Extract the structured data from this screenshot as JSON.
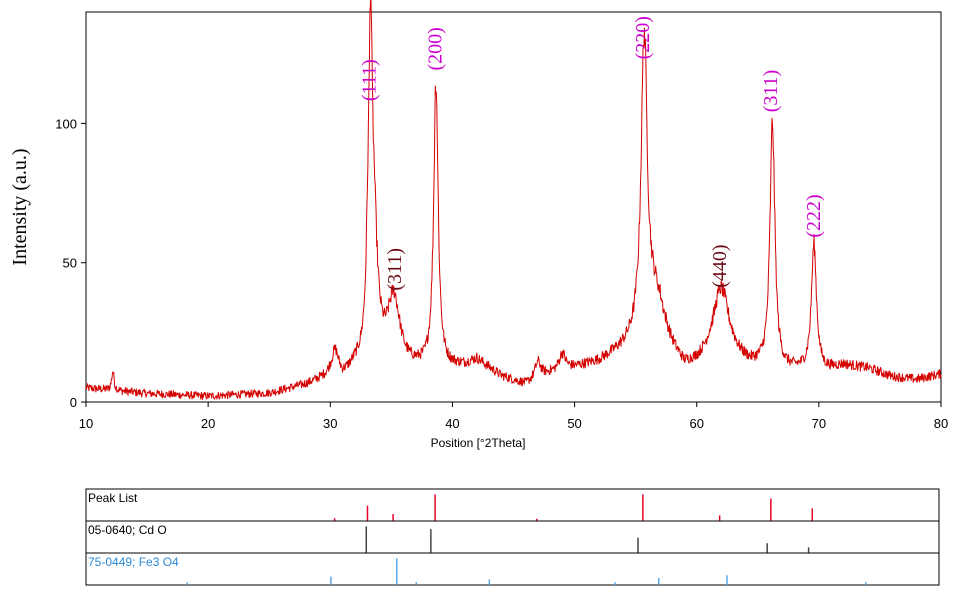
{
  "chart_data": {
    "type": "line",
    "xlabel": "Position [°2Theta]",
    "ylabel": "Intensity (a.u.)",
    "xlim": [
      10,
      80
    ],
    "ylim": [
      0,
      140
    ],
    "x_ticks": [
      10,
      20,
      30,
      40,
      50,
      60,
      70,
      80
    ],
    "y_ticks": [
      0,
      50,
      100
    ],
    "grid": false,
    "line_color": "#d40000",
    "background": [
      [
        10,
        5
      ],
      [
        15,
        3
      ],
      [
        20,
        2
      ],
      [
        25,
        3
      ],
      [
        28,
        6
      ],
      [
        30,
        9
      ],
      [
        31,
        8
      ],
      [
        32,
        12
      ],
      [
        33.5,
        14
      ],
      [
        36,
        12
      ],
      [
        37.5,
        12
      ],
      [
        39.5,
        12
      ],
      [
        41,
        13
      ],
      [
        42,
        15
      ],
      [
        44,
        9
      ],
      [
        46,
        6
      ],
      [
        48,
        10
      ],
      [
        50,
        12
      ],
      [
        52,
        14
      ],
      [
        54,
        18
      ],
      [
        55,
        20
      ],
      [
        57,
        22
      ],
      [
        58,
        16
      ],
      [
        59,
        11
      ],
      [
        60,
        12
      ],
      [
        61,
        14
      ],
      [
        63,
        14
      ],
      [
        64.5,
        12
      ],
      [
        65.5,
        12
      ],
      [
        67,
        11
      ],
      [
        68.5,
        11
      ],
      [
        70.5,
        11
      ],
      [
        72,
        13
      ],
      [
        74,
        12
      ],
      [
        76,
        9
      ],
      [
        78,
        8
      ],
      [
        80,
        10
      ]
    ],
    "peaks": [
      {
        "center": 33.1,
        "height": 30,
        "width": 0.18
      },
      {
        "center": 33.3,
        "height": 88,
        "width": 0.14
      },
      {
        "center": 33.55,
        "height": 50,
        "width": 0.35
      },
      {
        "center": 35.2,
        "height": 24,
        "width": 0.6
      },
      {
        "center": 38.65,
        "height": 103,
        "width": 0.22
      },
      {
        "center": 30.4,
        "height": 9,
        "width": 0.35
      },
      {
        "center": 55.7,
        "height": 106,
        "width": 0.3
      },
      {
        "center": 56.6,
        "height": 14,
        "width": 0.9
      },
      {
        "center": 62.0,
        "height": 26,
        "width": 0.8
      },
      {
        "center": 66.2,
        "height": 88,
        "width": 0.24
      },
      {
        "center": 69.6,
        "height": 45,
        "width": 0.25
      },
      {
        "center": 12.2,
        "height": 7,
        "width": 0.12
      },
      {
        "center": 47.0,
        "height": 6,
        "width": 0.3
      },
      {
        "center": 49.0,
        "height": 6,
        "width": 0.3
      }
    ],
    "noise_amplitude": 2.2,
    "annotations": [
      {
        "text": "(111)",
        "x": 33.2,
        "y": 108,
        "color": "#cc00cc"
      },
      {
        "text": "(200)",
        "x": 38.6,
        "y": 119,
        "color": "#cc00cc"
      },
      {
        "text": "(220)",
        "x": 55.6,
        "y": 123,
        "color": "#cc00cc"
      },
      {
        "text": "(311)",
        "x": 66.1,
        "y": 104,
        "color": "#cc00cc"
      },
      {
        "text": "(222)",
        "x": 69.6,
        "y": 59,
        "color": "#cc00cc"
      },
      {
        "text": "(311)",
        "x": 35.3,
        "y": 40,
        "color": "#6b0a14"
      },
      {
        "text": "(440)",
        "x": 61.9,
        "y": 41,
        "color": "#6b0a14"
      }
    ],
    "reference_panels": [
      {
        "label": "Peak List",
        "label_color": "#000000",
        "line_color": "#e8002a",
        "lines": [
          {
            "x": 30.4,
            "h": 0.1
          },
          {
            "x": 33.1,
            "h": 0.55
          },
          {
            "x": 35.2,
            "h": 0.25
          },
          {
            "x": 38.65,
            "h": 0.95
          },
          {
            "x": 47.0,
            "h": 0.08
          },
          {
            "x": 55.7,
            "h": 0.95
          },
          {
            "x": 62.0,
            "h": 0.2
          },
          {
            "x": 66.2,
            "h": 0.8
          },
          {
            "x": 69.6,
            "h": 0.45
          }
        ]
      },
      {
        "label": "05-0640; Cd O",
        "label_color": "#000000",
        "line_color": "#444444",
        "lines": [
          {
            "x": 33.0,
            "h": 0.95
          },
          {
            "x": 38.3,
            "h": 0.85
          },
          {
            "x": 55.3,
            "h": 0.55
          },
          {
            "x": 65.9,
            "h": 0.35
          },
          {
            "x": 69.3,
            "h": 0.2
          }
        ]
      },
      {
        "label": "75-0449; Fe3 O4",
        "label_color": "#2a88d8",
        "line_color": "#59a8e8",
        "lines": [
          {
            "x": 18.3,
            "h": 0.1
          },
          {
            "x": 30.1,
            "h": 0.3
          },
          {
            "x": 35.5,
            "h": 0.95
          },
          {
            "x": 37.1,
            "h": 0.1
          },
          {
            "x": 43.1,
            "h": 0.2
          },
          {
            "x": 53.4,
            "h": 0.1
          },
          {
            "x": 57.0,
            "h": 0.25
          },
          {
            "x": 62.6,
            "h": 0.35
          },
          {
            "x": 74.0,
            "h": 0.1
          }
        ]
      }
    ]
  }
}
